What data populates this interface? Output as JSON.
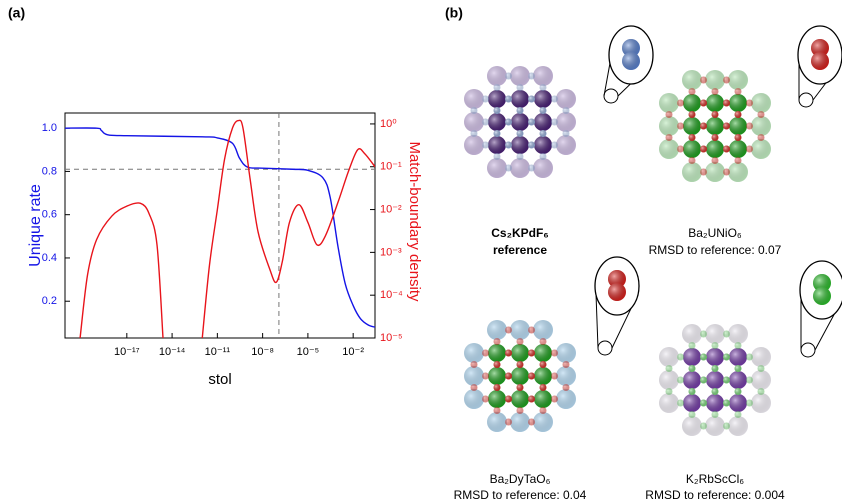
{
  "chart_data": {
    "type": "line",
    "xlabel": "stol",
    "ylabel": "Unique rate",
    "y2label": "Match-boundary density",
    "xscale": "log",
    "y2scale": "log",
    "xlim": [
      8e-22,
      0.28
    ],
    "ylim": [
      0.03,
      1.07
    ],
    "y2lim": [
      1e-05,
      1.8
    ],
    "xticks": [
      {
        "value": 1e-17,
        "label": "10⁻¹⁷"
      },
      {
        "value": 1e-14,
        "label": "10⁻¹⁴"
      },
      {
        "value": 1e-11,
        "label": "10⁻¹¹"
      },
      {
        "value": 1e-08,
        "label": "10⁻⁸"
      },
      {
        "value": 1e-05,
        "label": "10⁻⁵"
      },
      {
        "value": 0.01,
        "label": "10⁻²"
      }
    ],
    "yticks": [
      0.2,
      0.4,
      0.6,
      0.8,
      {
        "value": 1,
        "label": "1.0"
      }
    ],
    "y2ticks": [
      {
        "value": 1e-05,
        "label": "10⁻⁵"
      },
      {
        "value": 0.0001,
        "label": "10⁻⁴"
      },
      {
        "value": 0.001,
        "label": "10⁻³"
      },
      {
        "value": 0.01,
        "label": "10⁻²"
      },
      {
        "value": 0.1,
        "label": "10⁻¹"
      },
      {
        "value": 1,
        "label": "10⁰"
      }
    ],
    "reference_lines": [
      {
        "axis": "y",
        "value": 0.81
      },
      {
        "axis": "x",
        "value": 1.2e-07
      }
    ],
    "series": [
      {
        "name": "Unique rate",
        "color": "#1414e6",
        "axis": "y",
        "x": [
          8e-22,
          1e-19,
          2e-19,
          5e-19,
          1e-17,
          1e-12,
          1e-11,
          1e-10,
          3e-10,
          1e-09,
          1e-08,
          1e-06,
          1e-05,
          0.0001,
          0.0003,
          0.001,
          0.003,
          0.01,
          0.03,
          0.1,
          0.28
        ],
        "values": [
          1.0,
          1.0,
          0.99,
          0.97,
          0.965,
          0.96,
          0.955,
          0.93,
          0.86,
          0.82,
          0.815,
          0.81,
          0.805,
          0.77,
          0.68,
          0.45,
          0.28,
          0.18,
          0.12,
          0.09,
          0.08
        ]
      },
      {
        "name": "Match-boundary density",
        "color": "#e8141b",
        "axis": "y2",
        "x": [
          8e-21,
          2.5e-20,
          1e-19,
          1e-18,
          1e-17,
          8e-17,
          3e-16,
          1e-15,
          2.5e-15,
          1e-13,
          1e-12,
          3e-12,
          1e-11,
          3e-11,
          1e-10,
          2.5e-10,
          5e-10,
          1.5e-09,
          5e-09,
          3e-08,
          8e-08,
          2e-07,
          6e-07,
          2.5e-06,
          1e-05,
          4e-05,
          0.00015,
          0.001,
          0.005,
          0.02,
          0.06,
          0.28
        ],
        "values": [
          1e-05,
          0.0003,
          0.002,
          0.007,
          0.012,
          0.014,
          0.008,
          0.0015,
          1e-05,
          null,
          1e-05,
          0.0005,
          0.01,
          0.15,
          0.8,
          1.2,
          0.8,
          0.05,
          0.003,
          0.0004,
          0.0002,
          0.0006,
          0.005,
          0.013,
          0.005,
          0.0015,
          0.0025,
          0.015,
          0.08,
          0.25,
          0.2,
          0.1
        ]
      }
    ]
  },
  "panel_labels": [
    "(a)",
    "(b)"
  ],
  "structures": [
    {
      "formula": "Cs₂KPdF₆",
      "caption": "reference"
    },
    {
      "formula": "Ba₂UNiO₆",
      "caption": "RMSD to reference: 0.07"
    },
    {
      "formula": "Ba₂DyTaO₆",
      "caption": "RMSD to reference: 0.04"
    },
    {
      "formula": "K₂RbScCl₆",
      "caption": "RMSD to reference: 0.004"
    }
  ]
}
